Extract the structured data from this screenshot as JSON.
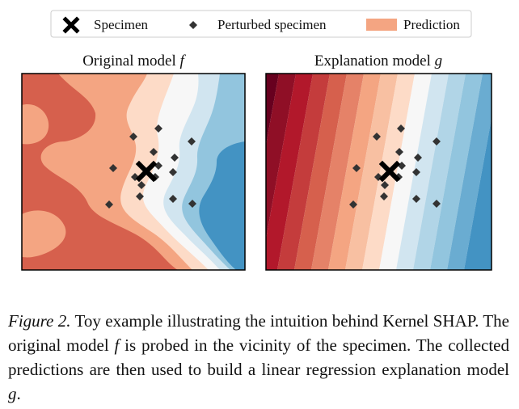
{
  "legend": {
    "entries": [
      {
        "label": "Specimen",
        "marker": "x-icon"
      },
      {
        "label": "Perturbed specimen",
        "marker": "diamond-icon"
      },
      {
        "label": "Prediction",
        "marker": "swatch-icon",
        "color": "#f4a582"
      }
    ]
  },
  "panels": [
    {
      "title_text": "Original model ",
      "title_symbol": "f"
    },
    {
      "title_text": "Explanation model ",
      "title_symbol": "g"
    }
  ],
  "colors": {
    "red_dark": "#67001f",
    "red": "#d6604d",
    "salmon": "#f4a582",
    "neutral": "#f7f7f7",
    "blue_light": "#92c5de",
    "blue": "#4393c3",
    "marker": "#333333",
    "specimen": "#000000"
  },
  "caption": {
    "label": "Figure 2.",
    "part1": " Toy example illustrating the intuition behind Kernel SHAP. The original model ",
    "sym1": "f",
    "part2": " is probed in the vicinity of the specimen. The collected predictions are then used to build a linear regression explanation model ",
    "sym2": "g",
    "part3": "."
  }
}
